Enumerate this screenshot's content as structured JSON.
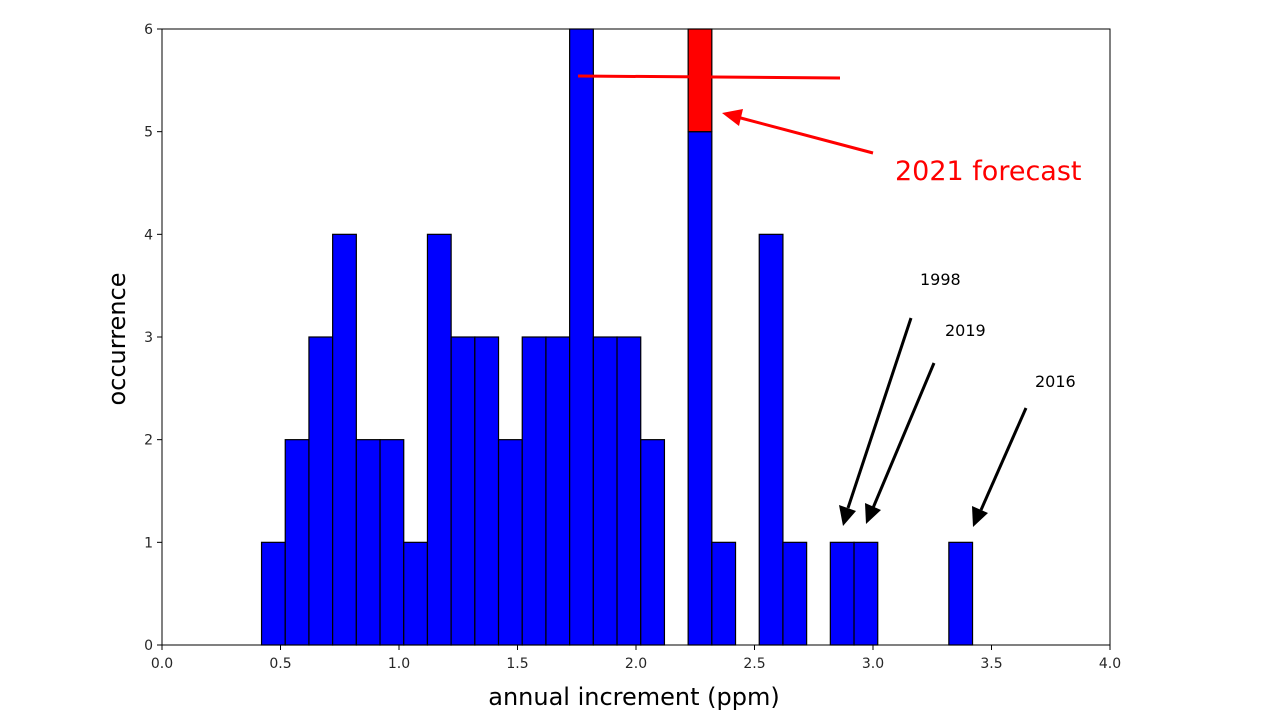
{
  "chart_data": {
    "type": "bar",
    "title": "",
    "xlabel": "annual increment (ppm)",
    "ylabel": "occurrence",
    "xlim": [
      0.0,
      4.0
    ],
    "ylim": [
      0,
      6
    ],
    "xticks": [
      "0.0",
      "0.5",
      "1.0",
      "1.5",
      "2.0",
      "2.5",
      "3.0",
      "3.5",
      "4.0"
    ],
    "yticks": [
      "0",
      "1",
      "2",
      "3",
      "4",
      "5",
      "6"
    ],
    "bin_width": 0.1,
    "bin_starts": [
      0.42,
      0.52,
      0.62,
      0.72,
      0.82,
      0.92,
      1.02,
      1.12,
      1.22,
      1.32,
      1.42,
      1.52,
      1.62,
      1.72,
      1.82,
      1.92,
      2.02,
      2.22,
      2.32,
      2.52,
      2.62,
      2.82,
      2.92,
      3.32
    ],
    "series": [
      {
        "color": "#0000ff",
        "values": [
          1,
          2,
          3,
          4,
          2,
          2,
          1,
          4,
          3,
          3,
          2,
          3,
          3,
          6,
          3,
          3,
          2,
          5,
          1,
          4,
          1,
          1,
          1,
          1
        ]
      }
    ],
    "forecast": {
      "bin_start": 2.22,
      "base": 5,
      "top": 6,
      "color": "#ff0000"
    },
    "annotations": {
      "forecast_label": "2021 forecast",
      "year_labels": [
        "1998",
        "2019",
        "2016"
      ],
      "forecast_line_y": 5.5
    }
  }
}
